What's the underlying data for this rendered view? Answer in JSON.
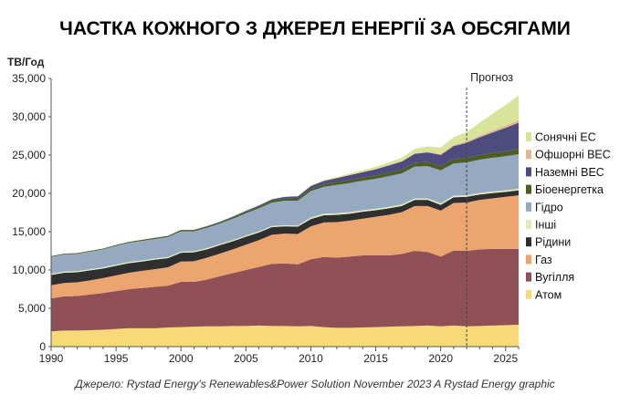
{
  "chart_data": {
    "type": "area",
    "stacked": true,
    "title": "ЧАСТКА КОЖНОГО З ДЖЕРЕЛ ЕНЕРГІЇ ЗА ОБСЯГАМИ",
    "ylabel": "ТВ/Год",
    "xlabel": "",
    "xlim": [
      1990,
      2026
    ],
    "ylim": [
      0,
      35000
    ],
    "x_ticks": [
      "1990",
      "1995",
      "2000",
      "2005",
      "2010",
      "2015",
      "2020",
      "2025"
    ],
    "y_ticks": [
      "0",
      "5,000",
      "10,000",
      "15,000",
      "20,000",
      "25,000",
      "30,000",
      "35,000"
    ],
    "grid": false,
    "legend_position": "right",
    "annotation": {
      "label": "Прогноз",
      "x": 2022
    },
    "source": "Джерело: Rystad Energy's Renewables&Power Solution November 2023 A Rystad Energy graphic",
    "x": [
      1990,
      1991,
      1992,
      1993,
      1994,
      1995,
      1996,
      1997,
      1998,
      1999,
      2000,
      2001,
      2002,
      2003,
      2004,
      2005,
      2006,
      2007,
      2008,
      2009,
      2010,
      2011,
      2012,
      2013,
      2014,
      2015,
      2016,
      2017,
      2018,
      2019,
      2020,
      2021,
      2022,
      2023,
      2024,
      2025,
      2026
    ],
    "series": [
      {
        "name": "Атом",
        "color": "#f8d978",
        "values": [
          2000,
          2100,
          2100,
          2150,
          2200,
          2300,
          2400,
          2400,
          2400,
          2500,
          2550,
          2600,
          2650,
          2650,
          2700,
          2700,
          2750,
          2700,
          2700,
          2650,
          2700,
          2550,
          2450,
          2450,
          2500,
          2550,
          2600,
          2650,
          2700,
          2750,
          2650,
          2750,
          2650,
          2700,
          2750,
          2800,
          2850
        ]
      },
      {
        "name": "Вугілля",
        "color": "#8f5155",
        "values": [
          4300,
          4450,
          4500,
          4650,
          4800,
          4950,
          5100,
          5250,
          5400,
          5450,
          5900,
          5850,
          6100,
          6550,
          6900,
          7300,
          7650,
          8100,
          8150,
          8100,
          8700,
          9150,
          9150,
          9300,
          9400,
          9350,
          9300,
          9450,
          9800,
          9600,
          9100,
          9800,
          9850,
          10000,
          10000,
          9950,
          9900
        ]
      },
      {
        "name": "Газ",
        "color": "#eca56f",
        "values": [
          1700,
          1750,
          1800,
          1850,
          1950,
          2050,
          2150,
          2250,
          2300,
          2400,
          2650,
          2700,
          2850,
          2950,
          3100,
          3300,
          3500,
          3800,
          3900,
          3950,
          4300,
          4500,
          4650,
          4700,
          4800,
          5050,
          5300,
          5450,
          5850,
          6000,
          6000,
          6200,
          6300,
          6450,
          6600,
          6800,
          7000
        ]
      },
      {
        "name": "Рідини",
        "color": "#2f2f2f",
        "values": [
          1350,
          1350,
          1300,
          1300,
          1250,
          1250,
          1250,
          1200,
          1250,
          1200,
          1150,
          1150,
          1100,
          1100,
          1050,
          1050,
          1000,
          1000,
          950,
          950,
          950,
          950,
          950,
          900,
          900,
          850,
          850,
          800,
          800,
          800,
          750,
          750,
          750,
          700,
          700,
          650,
          650
        ]
      },
      {
        "name": "Інші",
        "color": "#e0ecbd",
        "values": [
          150,
          150,
          150,
          150,
          150,
          150,
          150,
          150,
          150,
          150,
          150,
          150,
          150,
          150,
          150,
          150,
          150,
          150,
          150,
          150,
          200,
          200,
          200,
          200,
          200,
          200,
          200,
          200,
          200,
          200,
          200,
          200,
          200,
          200,
          200,
          200,
          200
        ]
      },
      {
        "name": "Гідро",
        "color": "#95aac0",
        "values": [
          2200,
          2250,
          2250,
          2300,
          2350,
          2450,
          2500,
          2550,
          2550,
          2600,
          2650,
          2600,
          2650,
          2650,
          2800,
          2900,
          3000,
          3050,
          3200,
          3250,
          3450,
          3500,
          3700,
          3800,
          3850,
          3900,
          4000,
          4050,
          4150,
          4200,
          4300,
          4200,
          4300,
          4350,
          4400,
          4450,
          4500
        ]
      },
      {
        "name": "Біоенергетка",
        "color": "#4d5e24",
        "values": [
          100,
          100,
          100,
          100,
          100,
          120,
          120,
          130,
          140,
          150,
          160,
          160,
          180,
          190,
          200,
          220,
          240,
          260,
          280,
          300,
          320,
          340,
          380,
          400,
          420,
          440,
          470,
          500,
          520,
          540,
          560,
          580,
          600,
          620,
          640,
          660,
          680
        ]
      },
      {
        "name": "Наземні ВЕС",
        "color": "#4e4c7f",
        "values": [
          0,
          0,
          0,
          0,
          0,
          0,
          10,
          10,
          20,
          20,
          30,
          40,
          50,
          60,
          80,
          100,
          130,
          160,
          220,
          270,
          340,
          430,
          520,
          630,
          700,
          800,
          920,
          1050,
          1150,
          1250,
          1450,
          1700,
          1950,
          2300,
          2650,
          3050,
          3450
        ]
      },
      {
        "name": "Офшорні ВЕС",
        "color": "#e3b692",
        "values": [
          0,
          0,
          0,
          0,
          0,
          0,
          0,
          0,
          0,
          0,
          0,
          0,
          0,
          0,
          0,
          0,
          0,
          0,
          0,
          10,
          10,
          20,
          20,
          30,
          30,
          40,
          50,
          60,
          70,
          90,
          120,
          150,
          180,
          220,
          260,
          300,
          350
        ]
      },
      {
        "name": "Сонячні ЕС",
        "color": "#d7e49a",
        "values": [
          0,
          0,
          0,
          0,
          0,
          0,
          0,
          0,
          0,
          0,
          0,
          0,
          0,
          0,
          0,
          0,
          0,
          10,
          20,
          20,
          50,
          80,
          120,
          170,
          230,
          290,
          360,
          450,
          570,
          700,
          850,
          1000,
          1200,
          1700,
          2200,
          2700,
          3200
        ]
      }
    ]
  }
}
